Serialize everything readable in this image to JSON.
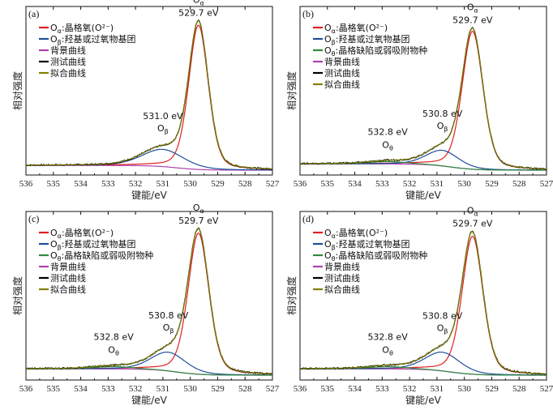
{
  "chart_data": [
    {
      "type": "line",
      "panel_label": "(a)",
      "xlabel": "键能/eV",
      "ylabel": "相对强度",
      "xlim": [
        536,
        527
      ],
      "xticks": [
        "536",
        "535",
        "534",
        "533",
        "532",
        "531",
        "530",
        "529",
        "528",
        "527"
      ],
      "legend": [
        {
          "symbol": "O",
          "sub": "α",
          "text": ":晶格氧(O²⁻)",
          "color": "#e02020"
        },
        {
          "symbol": "O",
          "sub": "β",
          "text": ":羟基或过氧物基团",
          "color": "#1f4e9a"
        },
        {
          "symbol": "",
          "sub": "",
          "text": "背景曲线",
          "color": "#b040b0"
        },
        {
          "symbol": "",
          "sub": "",
          "text": "测试曲线",
          "color": "#000000"
        },
        {
          "symbol": "",
          "sub": "",
          "text": "拟合曲线",
          "color": "#808000"
        }
      ],
      "peaks": [
        {
          "name": "Oα",
          "center": 529.7,
          "height": 0.92,
          "fwhm": 0.85,
          "color": "#e02020",
          "label_ev": "529.7 eV",
          "label_sym": "O",
          "label_sub": "α"
        },
        {
          "name": "Oβ",
          "center": 531.0,
          "height": 0.11,
          "fwhm": 1.8,
          "color": "#1f4e9a",
          "label_ev": "531.0 eV",
          "label_sym": "O",
          "label_sub": "β"
        }
      ],
      "background": {
        "high_ev_level": 0.03,
        "low_ev_level": 0.0
      }
    },
    {
      "type": "line",
      "panel_label": "(b)",
      "xlabel": "键能/eV",
      "ylabel": "相对强度",
      "xlim": [
        536,
        527
      ],
      "xticks": [
        "536",
        "535",
        "534",
        "533",
        "532",
        "531",
        "530",
        "529",
        "528",
        "527"
      ],
      "legend": [
        {
          "symbol": "O",
          "sub": "α",
          "text": ":晶格氧(O²⁻)",
          "color": "#e02020"
        },
        {
          "symbol": "O",
          "sub": "β",
          "text": ":羟基或过氧物基团",
          "color": "#1f4e9a"
        },
        {
          "symbol": "O",
          "sub": "θ",
          "text": ":晶格缺陷或弱吸附物种",
          "color": "#2e8b3e"
        },
        {
          "symbol": "",
          "sub": "",
          "text": "背景曲线",
          "color": "#b040b0"
        },
        {
          "symbol": "",
          "sub": "",
          "text": "测试曲线",
          "color": "#000000"
        },
        {
          "symbol": "",
          "sub": "",
          "text": "拟合曲线",
          "color": "#808000"
        }
      ],
      "peaks": [
        {
          "name": "Oα",
          "center": 529.7,
          "height": 0.88,
          "fwhm": 0.9,
          "color": "#e02020",
          "label_ev": "529.7 eV",
          "label_sym": "O",
          "label_sub": "α"
        },
        {
          "name": "Oβ",
          "center": 530.8,
          "height": 0.1,
          "fwhm": 1.4,
          "color": "#1f4e9a",
          "label_ev": "530.8 eV",
          "label_sym": "O",
          "label_sub": "β"
        },
        {
          "name": "Oθ",
          "center": 532.8,
          "height": 0.015,
          "fwhm": 1.6,
          "color": "#2e8b3e",
          "label_ev": "532.8 eV",
          "label_sym": "O",
          "label_sub": "θ"
        }
      ],
      "background": {
        "high_ev_level": 0.04,
        "low_ev_level": 0.0
      }
    },
    {
      "type": "line",
      "panel_label": "(c)",
      "xlabel": "键能/eV",
      "ylabel": "相对强度",
      "xlim": [
        536,
        527
      ],
      "xticks": [
        "536",
        "535",
        "534",
        "533",
        "532",
        "531",
        "530",
        "529",
        "528",
        "527"
      ],
      "legend": [
        {
          "symbol": "O",
          "sub": "α",
          "text": ":晶格氧(O²⁻)",
          "color": "#e02020"
        },
        {
          "symbol": "O",
          "sub": "β",
          "text": ":羟基或过氧物基团",
          "color": "#1f4e9a"
        },
        {
          "symbol": "O",
          "sub": "θ",
          "text": ":晶格缺陷或弱吸附物种",
          "color": "#2e8b3e"
        },
        {
          "symbol": "",
          "sub": "",
          "text": "背景曲线",
          "color": "#b040b0"
        },
        {
          "symbol": "",
          "sub": "",
          "text": "测试曲线",
          "color": "#000000"
        },
        {
          "symbol": "",
          "sub": "",
          "text": "拟合曲线",
          "color": "#808000"
        }
      ],
      "peaks": [
        {
          "name": "Oα",
          "center": 529.7,
          "height": 0.9,
          "fwhm": 0.9,
          "color": "#e02020",
          "label_ev": "529.7 eV",
          "label_sym": "O",
          "label_sub": "α"
        },
        {
          "name": "Oβ",
          "center": 530.8,
          "height": 0.12,
          "fwhm": 1.5,
          "color": "#1f4e9a",
          "label_ev": "530.8 eV",
          "label_sym": "O",
          "label_sub": "β"
        },
        {
          "name": "Oθ",
          "center": 532.8,
          "height": 0.015,
          "fwhm": 1.6,
          "color": "#2e8b3e",
          "label_ev": "532.8 eV",
          "label_sym": "O",
          "label_sub": "θ"
        }
      ],
      "background": {
        "high_ev_level": 0.04,
        "low_ev_level": 0.0
      }
    },
    {
      "type": "line",
      "panel_label": "(d)",
      "xlabel": "键能/eV",
      "ylabel": "相对强度",
      "xlim": [
        536,
        527
      ],
      "xticks": [
        "536",
        "535",
        "534",
        "533",
        "532",
        "531",
        "530",
        "529",
        "528",
        "527"
      ],
      "legend": [
        {
          "symbol": "O",
          "sub": "α",
          "text": ":晶格氧(O²⁻)",
          "color": "#e02020"
        },
        {
          "symbol": "O",
          "sub": "β",
          "text": ":羟基或过氧物基团",
          "color": "#1f4e9a"
        },
        {
          "symbol": "O",
          "sub": "θ",
          "text": ":晶格缺陷或弱吸附物种",
          "color": "#2e8b3e"
        },
        {
          "symbol": "",
          "sub": "",
          "text": "背景曲线",
          "color": "#b040b0"
        },
        {
          "symbol": "",
          "sub": "",
          "text": "测试曲线",
          "color": "#000000"
        },
        {
          "symbol": "",
          "sub": "",
          "text": "拟合曲线",
          "color": "#808000"
        }
      ],
      "peaks": [
        {
          "name": "Oα",
          "center": 529.7,
          "height": 0.88,
          "fwhm": 0.9,
          "color": "#e02020",
          "label_ev": "529.7 eV",
          "label_sym": "O",
          "label_sub": "α"
        },
        {
          "name": "Oβ",
          "center": 530.8,
          "height": 0.12,
          "fwhm": 1.5,
          "color": "#1f4e9a",
          "label_ev": "530.8 eV",
          "label_sym": "O",
          "label_sub": "β"
        },
        {
          "name": "Oθ",
          "center": 532.8,
          "height": 0.015,
          "fwhm": 1.6,
          "color": "#2e8b3e",
          "label_ev": "532.8 eV",
          "label_sym": "O",
          "label_sub": "θ"
        }
      ],
      "background": {
        "high_ev_level": 0.04,
        "low_ev_level": 0.0
      }
    }
  ]
}
